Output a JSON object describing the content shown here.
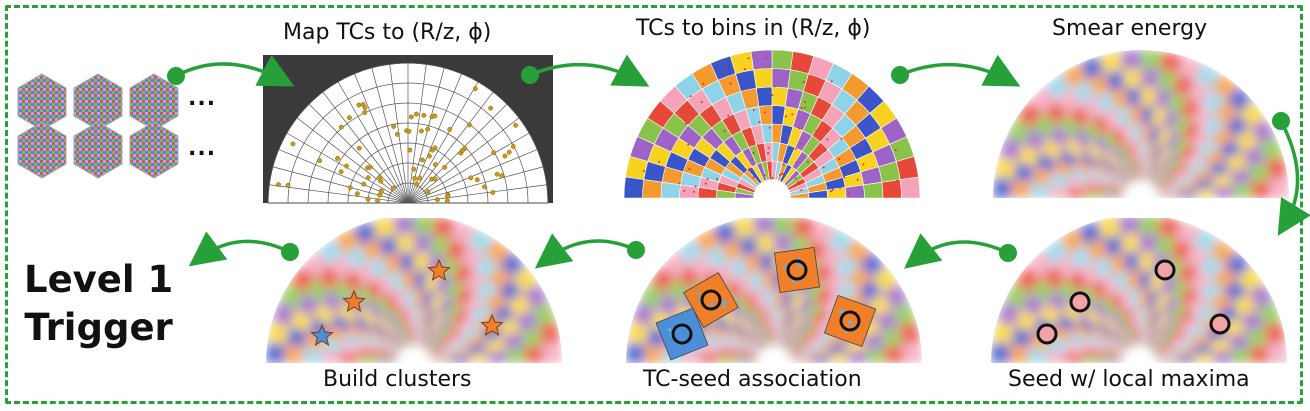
{
  "steps": {
    "map_tcs": "Map TCs to (R/z, ϕ)",
    "bins": "TCs to bins in (R/z, ϕ)",
    "smear": "Smear energy",
    "seed": "Seed w/ local maxima",
    "assoc": "TC-seed association",
    "build": "Build clusters"
  },
  "ellipsis": "...",
  "final": {
    "line1": "Level 1",
    "line2": "Trigger"
  },
  "colors": {
    "arrow": "#27a03a",
    "frame": "#27a03a",
    "tc_dot": "#c99a16",
    "seed_fill": "#f2a3a8"
  }
}
